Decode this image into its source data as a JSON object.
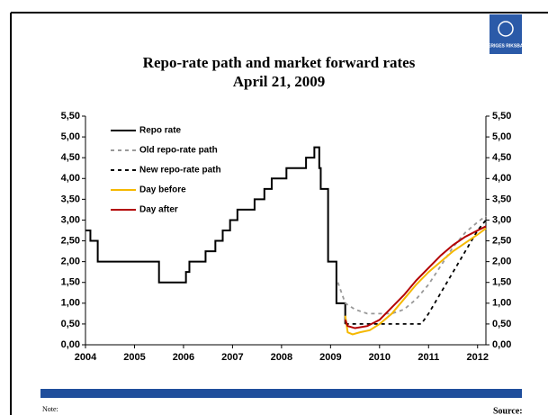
{
  "chart_data": {
    "type": "line",
    "title": "Repo-rate path and market forward rates",
    "subtitle": "April 21, 2009",
    "logo_text": "SVERIGES RIKSBANK",
    "note": "Note:",
    "source": "Source:",
    "xlim": [
      2004,
      2012.17
    ],
    "xticks": [
      2004,
      2005,
      2006,
      2007,
      2008,
      2009,
      2010,
      2011,
      2012
    ],
    "ylim": [
      0,
      5.5
    ],
    "yticks": [
      {
        "value": 0,
        "label": "0,00"
      },
      {
        "value": 0.5,
        "label": "0,50"
      },
      {
        "value": 1,
        "label": "1,00"
      },
      {
        "value": 1.5,
        "label": "1,50"
      },
      {
        "value": 2,
        "label": "2,00"
      },
      {
        "value": 2.5,
        "label": "2,50"
      },
      {
        "value": 3,
        "label": "3,00"
      },
      {
        "value": 3.5,
        "label": "3,50"
      },
      {
        "value": 4,
        "label": "4,00"
      },
      {
        "value": 4.5,
        "label": "4,50"
      },
      {
        "value": 5,
        "label": "5,00"
      },
      {
        "value": 5.5,
        "label": "5,50"
      }
    ],
    "y2lim": [
      0,
      5.5
    ],
    "y2ticks": [
      {
        "value": 0,
        "label": "0,00"
      },
      {
        "value": 0.5,
        "label": "0,50"
      },
      {
        "value": 1,
        "label": "1,00"
      },
      {
        "value": 1.5,
        "label": "1,50"
      },
      {
        "value": 2,
        "label": "2,00"
      },
      {
        "value": 2.5,
        "label": "2,50"
      },
      {
        "value": 3,
        "label": "3,00"
      },
      {
        "value": 3.5,
        "label": "3,50"
      },
      {
        "value": 4,
        "label": "4,00"
      },
      {
        "value": 4.5,
        "label": "4,50"
      },
      {
        "value": 5,
        "label": "5,00"
      },
      {
        "value": 5.5,
        "label": "5,50"
      }
    ],
    "grid": false,
    "legend_position": "upper-left",
    "series": [
      {
        "name": "Repo rate",
        "color": "#000000",
        "style": "solid",
        "x": [
          2004.0,
          2004.1,
          2004.1,
          2004.25,
          2004.25,
          2005.5,
          2005.5,
          2006.05,
          2006.05,
          2006.12,
          2006.12,
          2006.45,
          2006.45,
          2006.65,
          2006.65,
          2006.8,
          2006.8,
          2006.95,
          2006.95,
          2007.1,
          2007.1,
          2007.45,
          2007.45,
          2007.65,
          2007.65,
          2007.8,
          2007.8,
          2008.1,
          2008.1,
          2008.5,
          2008.5,
          2008.67,
          2008.67,
          2008.77,
          2008.77,
          2008.8,
          2008.8,
          2008.95,
          2008.95,
          2009.12,
          2009.12,
          2009.3,
          2009.3
        ],
        "values": [
          2.75,
          2.75,
          2.5,
          2.5,
          2.0,
          2.0,
          1.5,
          1.5,
          1.75,
          1.75,
          2.0,
          2.0,
          2.25,
          2.25,
          2.5,
          2.5,
          2.75,
          2.75,
          3.0,
          3.0,
          3.25,
          3.25,
          3.5,
          3.5,
          3.75,
          3.75,
          4.0,
          4.0,
          4.25,
          4.25,
          4.5,
          4.5,
          4.75,
          4.75,
          4.25,
          4.25,
          3.75,
          3.75,
          2.0,
          2.0,
          1.0,
          1.0,
          0.5
        ]
      },
      {
        "name": "Old repo-rate path",
        "color": "#999999",
        "style": "dashed",
        "x": [
          2009.15,
          2009.3,
          2009.5,
          2009.75,
          2010.25,
          2010.5,
          2010.75,
          2011.0,
          2011.25,
          2011.5,
          2011.75,
          2012.0,
          2012.17
        ],
        "values": [
          1.5,
          1.0,
          0.85,
          0.75,
          0.75,
          0.85,
          1.1,
          1.45,
          1.9,
          2.35,
          2.7,
          2.95,
          3.1
        ]
      },
      {
        "name": "New repo-rate path",
        "color": "#000000",
        "style": "dashed",
        "x": [
          2009.3,
          2009.5,
          2010.0,
          2010.5,
          2010.85,
          2011.0,
          2011.25,
          2011.5,
          2011.75,
          2012.0,
          2012.17
        ],
        "values": [
          0.5,
          0.5,
          0.5,
          0.5,
          0.5,
          0.75,
          1.25,
          1.75,
          2.25,
          2.75,
          3.0
        ]
      },
      {
        "name": "Day before",
        "color": "#f5b800",
        "style": "solid",
        "x": [
          2009.3,
          2009.35,
          2009.45,
          2009.6,
          2009.8,
          2010.0,
          2010.25,
          2010.5,
          2010.75,
          2011.0,
          2011.25,
          2011.5,
          2011.75,
          2012.0,
          2012.17
        ],
        "values": [
          0.7,
          0.3,
          0.25,
          0.3,
          0.35,
          0.5,
          0.75,
          1.1,
          1.45,
          1.75,
          2.0,
          2.25,
          2.45,
          2.65,
          2.8
        ]
      },
      {
        "name": "Day after",
        "color": "#b30000",
        "style": "solid",
        "x": [
          2009.3,
          2009.35,
          2009.5,
          2009.75,
          2010.0,
          2010.25,
          2010.5,
          2010.75,
          2011.0,
          2011.25,
          2011.5,
          2011.75,
          2012.0,
          2012.17
        ],
        "values": [
          0.6,
          0.45,
          0.4,
          0.45,
          0.6,
          0.9,
          1.2,
          1.55,
          1.85,
          2.15,
          2.4,
          2.6,
          2.75,
          2.85
        ]
      }
    ]
  }
}
